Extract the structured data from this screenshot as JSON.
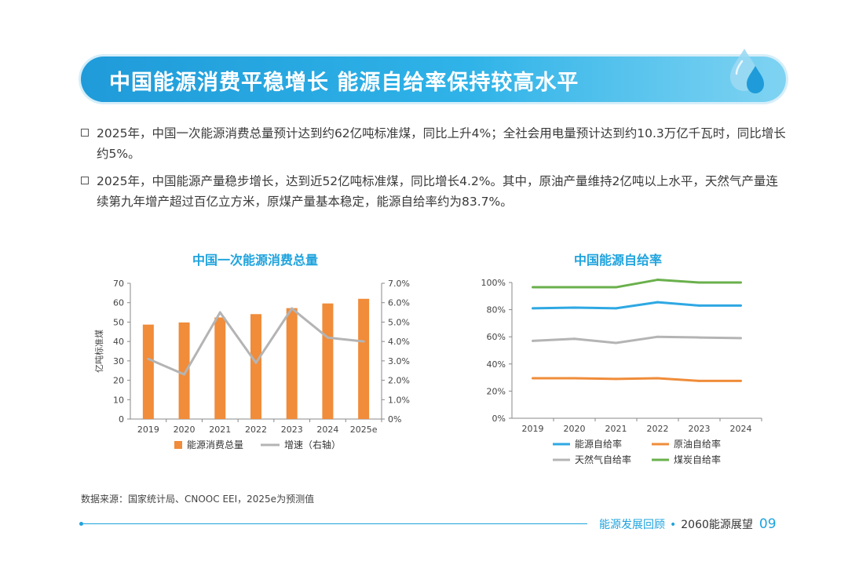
{
  "header": {
    "title": "中国能源消费平稳增长  能源自给率保持较高水平"
  },
  "bullets": [
    "2025年，中国一次能源消费总量预计达到约62亿吨标准煤，同比上升4%；全社会用电量预计达到约10.3万亿千瓦时，同比增长约5%。",
    "2025年，中国能源产量稳步增长，达到近52亿吨标准煤，同比增长4.2%。其中，原油产量维持2亿吨以上水平，天然气产量连续第九年增产超过百亿立方米，原煤产量基本稳定，能源自给率约为83.7%。"
  ],
  "chart_data": [
    {
      "type": "bar",
      "title": "中国一次能源消费总量",
      "categories": [
        "2019",
        "2020",
        "2021",
        "2022",
        "2023",
        "2024",
        "2025e"
      ],
      "series": [
        {
          "name": "能源消费总量",
          "type": "bar",
          "axis": "left",
          "values": [
            48.7,
            49.8,
            52.4,
            54.1,
            57.2,
            59.6,
            62.0
          ],
          "color": "#f08c3a"
        },
        {
          "name": "增速（右轴）",
          "type": "line",
          "axis": "right",
          "values": [
            3.1,
            2.3,
            5.5,
            2.9,
            5.7,
            4.2,
            4.0
          ],
          "color": "#b4b4b4"
        }
      ],
      "ylabel": "亿吨标准煤",
      "ylim": [
        0,
        70
      ],
      "yticks": [
        "0",
        "10",
        "20",
        "30",
        "40",
        "50",
        "60",
        "70"
      ],
      "y2lim": [
        0,
        7
      ],
      "y2ticks": [
        "0%",
        "1.0%",
        "2.0%",
        "3.0%",
        "4.0%",
        "5.0%",
        "6.0%",
        "7.0%"
      ],
      "legend": [
        "能源消费总量",
        "增速（右轴）"
      ]
    },
    {
      "type": "line",
      "title": "中国能源自给率",
      "categories": [
        "2019",
        "2020",
        "2021",
        "2022",
        "2023",
        "2024"
      ],
      "series": [
        {
          "name": "能源自给率",
          "values": [
            81,
            81.5,
            81,
            85.5,
            83,
            83
          ],
          "color": "#2ea8e3"
        },
        {
          "name": "原油自给率",
          "values": [
            29.5,
            29.5,
            29,
            29.5,
            27.5,
            27.5
          ],
          "color": "#f08c3a"
        },
        {
          "name": "天然气自给率",
          "values": [
            57,
            58.5,
            55.5,
            60,
            59.5,
            59
          ],
          "color": "#b4b4b4"
        },
        {
          "name": "煤炭自给率",
          "values": [
            96.5,
            96.5,
            96.5,
            102,
            100,
            100
          ],
          "color": "#6ab04c"
        }
      ],
      "ylim": [
        0,
        100
      ],
      "yticks": [
        "0%",
        "20%",
        "40%",
        "60%",
        "80%",
        "100%"
      ],
      "legend": [
        "能源自给率",
        "原油自给率",
        "天然气自给率",
        "煤炭自给率"
      ]
    }
  ],
  "source": "数据来源：国家统计局、CNOOC EEI，2025e为预测值",
  "footer": {
    "section": "能源发展回顾",
    "separator": "•",
    "book": "2060能源展望",
    "page": "09"
  }
}
